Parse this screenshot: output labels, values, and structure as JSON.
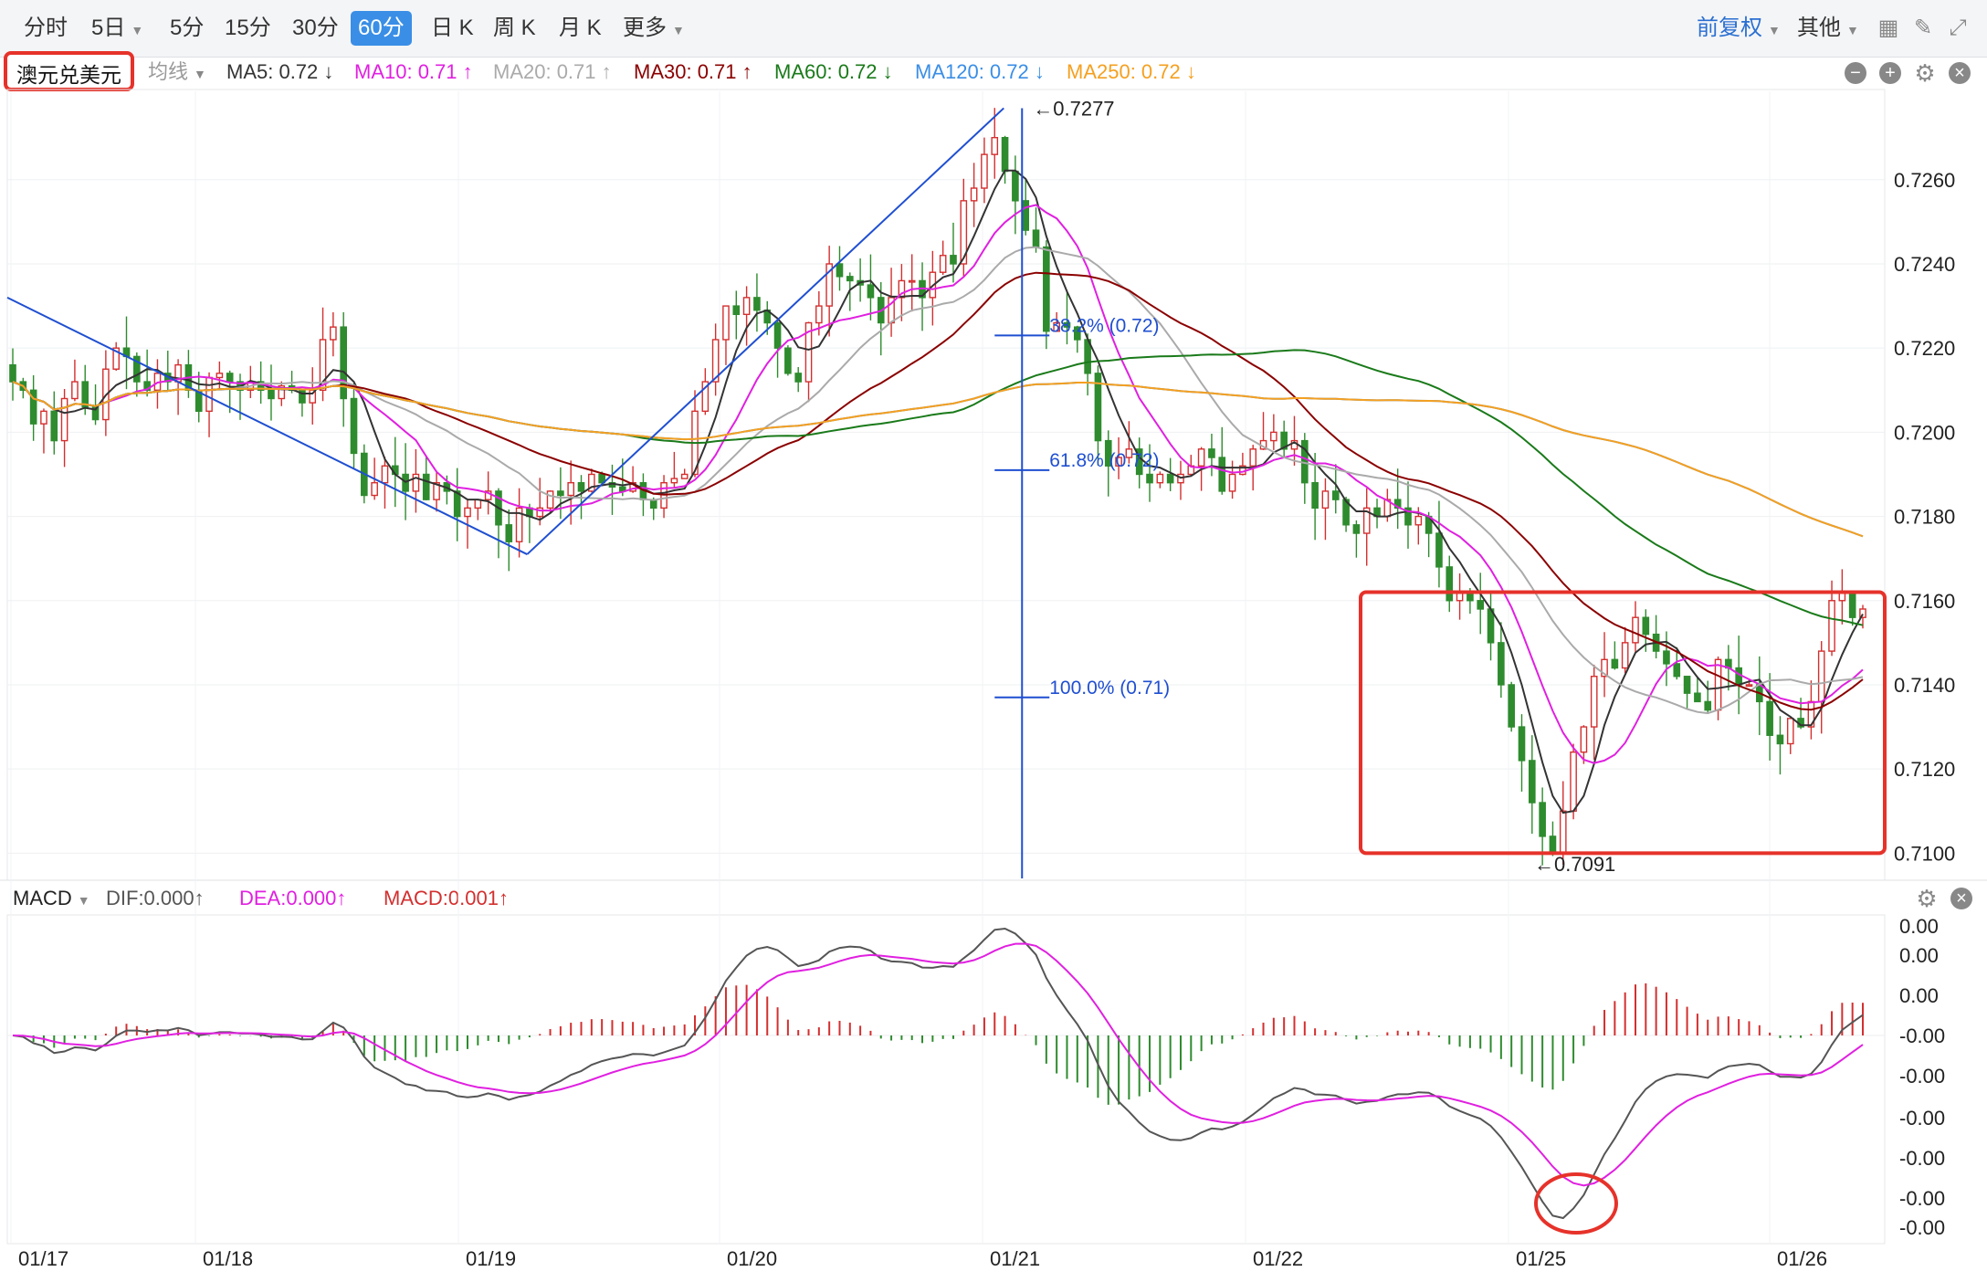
{
  "toolbar": {
    "tabs": [
      {
        "label": "分时",
        "active": false
      },
      {
        "label": "5日",
        "active": false,
        "dropdown": true
      },
      {
        "label": "5分",
        "active": false
      },
      {
        "label": "15分",
        "active": false
      },
      {
        "label": "30分",
        "active": false
      },
      {
        "label": "60分",
        "active": true
      },
      {
        "label": "日 K",
        "active": false
      },
      {
        "label": "周 K",
        "active": false
      },
      {
        "label": "月 K",
        "active": false
      },
      {
        "label": "更多",
        "active": false,
        "dropdown": true
      }
    ],
    "right_adjust": "前复权",
    "right_other": "其他",
    "icons": [
      "grid-icon",
      "draw-pen-icon",
      "fullscreen-icon"
    ]
  },
  "legend": {
    "pair": "澳元兑美元",
    "avg_label": "均线",
    "items": [
      {
        "text": "MA5: 0.72 ↓",
        "color": "#333333"
      },
      {
        "text": "MA10: 0.71 ↑",
        "color": "#e020e0"
      },
      {
        "text": "MA20: 0.71 ↑",
        "color": "#aaaaaa"
      },
      {
        "text": "MA30: 0.71 ↑",
        "color": "#8b0000"
      },
      {
        "text": "MA60: 0.72 ↓",
        "color": "#1a7a1a"
      },
      {
        "text": "MA120: 0.72 ↓",
        "color": "#3a8ee6"
      },
      {
        "text": "MA250: 0.72 ↓",
        "color": "#f5a020"
      }
    ],
    "controls": [
      "minus-icon",
      "plus-icon",
      "settings-icon",
      "close-icon"
    ]
  },
  "macd_legend": {
    "label": "MACD",
    "items": [
      {
        "text": "DIF:0.000↑",
        "color": "#555555"
      },
      {
        "text": "DEA:0.000↑",
        "color": "#e020e0"
      },
      {
        "text": "MACD:0.001↑",
        "color": "#d32f2f"
      }
    ],
    "controls": [
      "settings-icon",
      "close-icon"
    ]
  },
  "chart_data": {
    "type": "candlestick",
    "instrument": "澳元兑美元",
    "interval": "60分",
    "y_ticks": [
      "0.7260",
      "0.7240",
      "0.7220",
      "0.7200",
      "0.7180",
      "0.7160",
      "0.7140",
      "0.7120",
      "0.7100"
    ],
    "ylim": [
      0.7094,
      0.7281
    ],
    "x_ticks": [
      "01/17",
      "01/18",
      "01/19",
      "01/20",
      "01/21",
      "01/22",
      "01/25",
      "01/26"
    ],
    "high_label": "0.7277",
    "low_label": "0.7091",
    "fib_levels": [
      {
        "label": "38.2% (0.72)",
        "value": 0.7223
      },
      {
        "label": "61.8% (0.72)",
        "value": 0.7191
      },
      {
        "label": "100.0% (0.71)",
        "value": 0.7137
      }
    ],
    "close_series": [
      0.7212,
      0.721,
      0.7202,
      0.7205,
      0.7198,
      0.7208,
      0.7212,
      0.7206,
      0.7203,
      0.7215,
      0.722,
      0.7218,
      0.7212,
      0.721,
      0.7214,
      0.7212,
      0.7216,
      0.721,
      0.7205,
      0.7213,
      0.7214,
      0.7212,
      0.721,
      0.7212,
      0.721,
      0.7208,
      0.7211,
      0.721,
      0.7207,
      0.721,
      0.7222,
      0.7225,
      0.7208,
      0.7195,
      0.7185,
      0.7188,
      0.7192,
      0.719,
      0.7186,
      0.719,
      0.7184,
      0.7188,
      0.7186,
      0.718,
      0.7182,
      0.7184,
      0.7186,
      0.7178,
      0.7174,
      0.7182,
      0.718,
      0.7182,
      0.7186,
      0.7185,
      0.7188,
      0.7186,
      0.719,
      0.7188,
      0.7187,
      0.7186,
      0.7188,
      0.7184,
      0.7182,
      0.7188,
      0.7189,
      0.719,
      0.7205,
      0.7212,
      0.7222,
      0.723,
      0.7228,
      0.7232,
      0.7229,
      0.7226,
      0.722,
      0.7214,
      0.7212,
      0.7226,
      0.723,
      0.724,
      0.7237,
      0.7236,
      0.7235,
      0.7232,
      0.7226,
      0.7232,
      0.7236,
      0.7236,
      0.7232,
      0.7238,
      0.7242,
      0.724,
      0.7255,
      0.7258,
      0.7266,
      0.727,
      0.7262,
      0.7255,
      0.7248,
      0.7244,
      0.7224,
      0.7226,
      0.7225,
      0.7222,
      0.7214,
      0.7198,
      0.7192,
      0.7194,
      0.7196,
      0.719,
      0.7188,
      0.719,
      0.7188,
      0.719,
      0.7192,
      0.7196,
      0.7194,
      0.7186,
      0.719,
      0.7192,
      0.7196,
      0.7198,
      0.72,
      0.7196,
      0.7198,
      0.7188,
      0.7182,
      0.7186,
      0.7184,
      0.7178,
      0.7176,
      0.7182,
      0.718,
      0.7184,
      0.7182,
      0.7178,
      0.718,
      0.7176,
      0.7168,
      0.716,
      0.7162,
      0.716,
      0.7158,
      0.715,
      0.714,
      0.713,
      0.7122,
      0.7112,
      0.7104,
      0.71,
      0.711,
      0.7124,
      0.713,
      0.7142,
      0.7146,
      0.7144,
      0.715,
      0.7156,
      0.7152,
      0.7148,
      0.7145,
      0.7142,
      0.7138,
      0.7136,
      0.7134,
      0.7146,
      0.7144,
      0.714,
      0.714,
      0.7136,
      0.7128,
      0.7126,
      0.7132,
      0.713,
      0.7136,
      0.7148,
      0.716,
      0.7162,
      0.7156,
      0.7158
    ],
    "ma_series": [
      {
        "name": "MA5",
        "color": "#333333",
        "last": 0.72
      },
      {
        "name": "MA10",
        "color": "#e020e0",
        "last": 0.71
      },
      {
        "name": "MA20",
        "color": "#aaaaaa",
        "last": 0.71
      },
      {
        "name": "MA30",
        "color": "#8b0000",
        "last": 0.71
      },
      {
        "name": "MA60",
        "color": "#1a7a1a",
        "last": 0.72
      },
      {
        "name": "MA120",
        "color": "#3a8ee6",
        "last": 0.72
      },
      {
        "name": "MA250",
        "color": "#f5a020",
        "last": 0.72
      }
    ],
    "macd": {
      "y_ticks": [
        "0.00",
        "0.00",
        "0.00",
        "-0.00",
        "-0.00",
        "-0.00",
        "-0.00",
        "-0.00",
        "-0.00"
      ],
      "dif": 0.0,
      "dea": 0.0,
      "macd": 0.001
    },
    "colors": {
      "up": "#d32f2f",
      "down": "#2e8b2e",
      "annotation": "#e6322a",
      "fib": "#1f4fd1"
    }
  }
}
